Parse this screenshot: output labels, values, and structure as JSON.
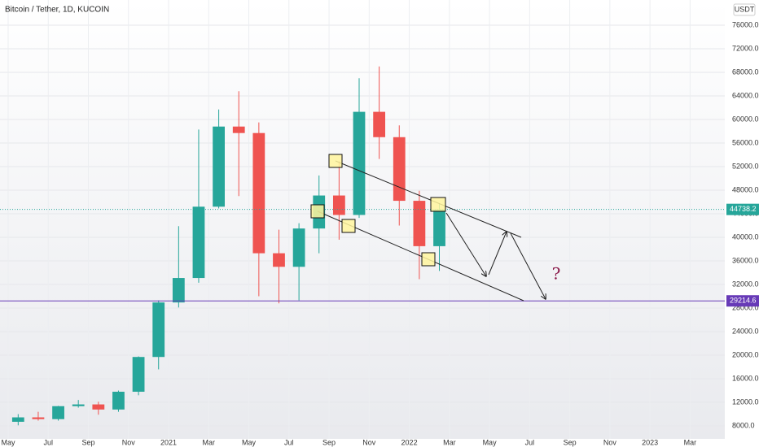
{
  "chart_data": {
    "type": "candlestick",
    "title": "Bitcoin / Tether, 1D, KUCOIN",
    "currency": "USDT",
    "x": [
      "2020-05",
      "2020-06",
      "2020-07",
      "2020-08",
      "2020-09",
      "2020-10",
      "2020-11",
      "2020-12",
      "2021-01",
      "2021-02",
      "2021-03",
      "2021-04",
      "2021-05",
      "2021-06",
      "2021-07",
      "2021-08",
      "2021-09",
      "2021-10",
      "2021-11",
      "2021-12",
      "2022-01",
      "2022-02"
    ],
    "open": [
      8700,
      9450,
      9150,
      11350,
      11650,
      10780,
      13800,
      19700,
      28950,
      33100,
      45200,
      58800,
      57700,
      37300,
      35000,
      41500,
      47100,
      43800,
      61300,
      57000,
      46200,
      38500
    ],
    "high": [
      10000,
      10400,
      11400,
      12400,
      12100,
      14000,
      19800,
      29300,
      41900,
      58300,
      61700,
      64800,
      59500,
      41300,
      42400,
      50500,
      52900,
      67000,
      69000,
      59000,
      47900,
      45800
    ],
    "low": [
      8100,
      8900,
      8900,
      11100,
      9900,
      10400,
      13200,
      17600,
      28100,
      32300,
      44900,
      47000,
      30000,
      28800,
      29300,
      37300,
      39600,
      43300,
      53300,
      42000,
      32900,
      34300
    ],
    "close": [
      9450,
      9150,
      11350,
      11650,
      10780,
      13800,
      19700,
      28950,
      33100,
      45200,
      58800,
      57700,
      37300,
      35000,
      41500,
      47100,
      43800,
      61300,
      57000,
      46200,
      38500,
      44738.2
    ],
    "up_color": "#26a69a",
    "down_color": "#ef5350",
    "levels": [
      {
        "value": 29214.6,
        "color": "#673ab7"
      }
    ],
    "annotation": "?",
    "xlim": [
      "2020-05",
      "2023-04"
    ],
    "xticks": [
      {
        "value": "2020-05",
        "label": "May"
      },
      {
        "value": "2020-07",
        "label": "Jul"
      },
      {
        "value": "2020-09",
        "label": "Sep"
      },
      {
        "value": "2020-11",
        "label": "Nov"
      },
      {
        "value": "2021-01",
        "label": "2021"
      },
      {
        "value": "2021-03",
        "label": "Mar"
      },
      {
        "value": "2021-05",
        "label": "May"
      },
      {
        "value": "2021-07",
        "label": "Jul"
      },
      {
        "value": "2021-09",
        "label": "Sep"
      },
      {
        "value": "2021-11",
        "label": "Nov"
      },
      {
        "value": "2022-01",
        "label": "2022"
      },
      {
        "value": "2022-03",
        "label": "Mar"
      },
      {
        "value": "2022-05",
        "label": "May"
      },
      {
        "value": "2022-07",
        "label": "Jul"
      },
      {
        "value": "2022-09",
        "label": "Sep"
      },
      {
        "value": "2022-11",
        "label": "Nov"
      },
      {
        "value": "2023-01",
        "label": "2023"
      },
      {
        "value": "2023-03",
        "label": "Mar"
      }
    ],
    "ylim": [
      5800,
      80276
    ],
    "yticks": [
      {
        "value": 8000,
        "label": "8000.0"
      },
      {
        "value": 12000,
        "label": "12000.0"
      },
      {
        "value": 16000,
        "label": "16000.0"
      },
      {
        "value": 20000,
        "label": "20000.0"
      },
      {
        "value": 24000,
        "label": "24000.0"
      },
      {
        "value": 28000,
        "label": "28000.0"
      },
      {
        "value": 32000,
        "label": "32000.0"
      },
      {
        "value": 36000,
        "label": "36000.0"
      },
      {
        "value": 40000,
        "label": "40000.0"
      },
      {
        "value": 44000,
        "label": "44000.0"
      },
      {
        "value": 48000,
        "label": "48000.0"
      },
      {
        "value": 52000,
        "label": "52000.0"
      },
      {
        "value": 56000,
        "label": "56000.0"
      },
      {
        "value": 60000,
        "label": "60000.0"
      },
      {
        "value": 64000,
        "label": "64000.0"
      },
      {
        "value": 68000,
        "label": "68000.0"
      },
      {
        "value": 72000,
        "label": "72000.0"
      },
      {
        "value": 76000,
        "label": "76000.0"
      }
    ],
    "grid": true
  }
}
